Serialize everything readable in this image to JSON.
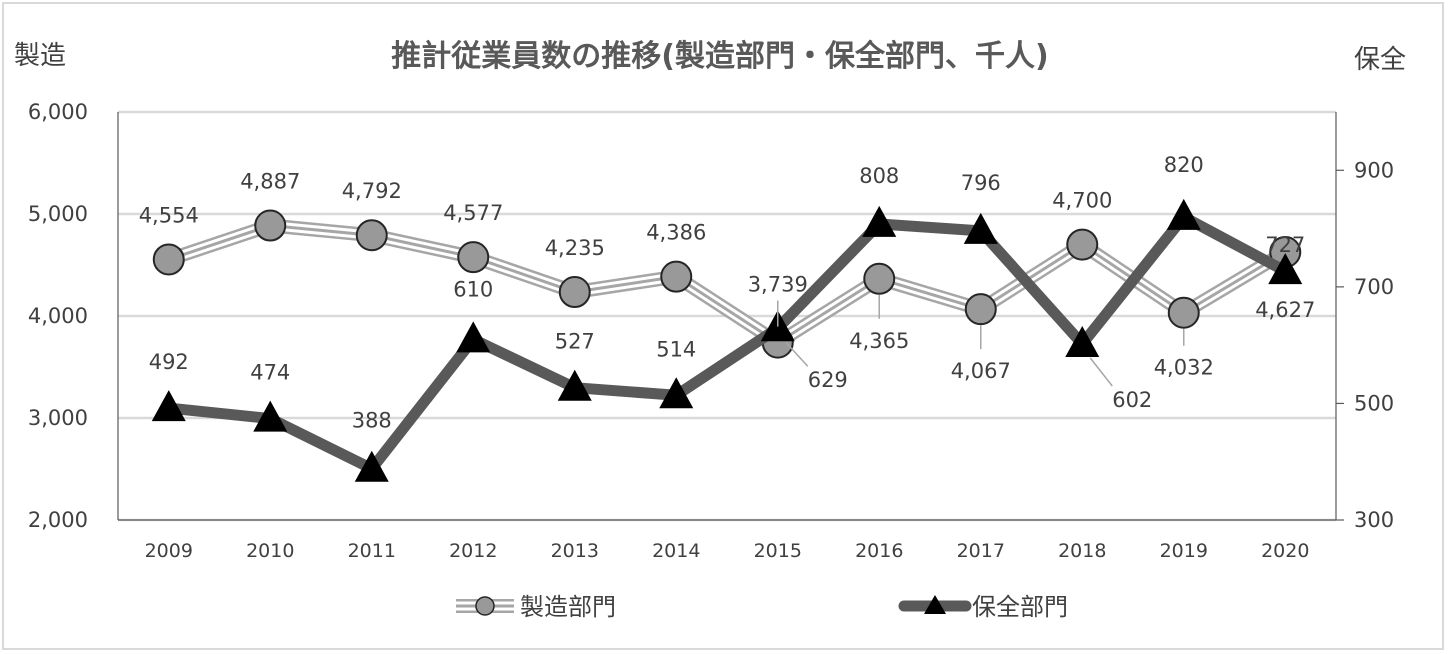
{
  "chart_data": {
    "type": "line",
    "title": "推計従業員数の推移(製造部門・保全部門、千人)",
    "y_left_label": "製造",
    "y_right_label": "保全",
    "categories": [
      "2009",
      "2010",
      "2011",
      "2012",
      "2013",
      "2014",
      "2015",
      "2016",
      "2017",
      "2018",
      "2019",
      "2020"
    ],
    "y_left": {
      "range": [
        2000,
        6000
      ],
      "ticks": [
        "2,000",
        "3,000",
        "4,000",
        "5,000",
        "6,000"
      ],
      "tick_values": [
        2000,
        3000,
        4000,
        5000,
        6000
      ]
    },
    "y_right": {
      "range": [
        300,
        1000
      ],
      "ticks": [
        "300",
        "500",
        "700",
        "900"
      ],
      "tick_values": [
        300,
        500,
        700,
        900
      ]
    },
    "grid": true,
    "legend_position": "bottom",
    "series": [
      {
        "name": "製造部門",
        "axis": "left",
        "marker": "circle",
        "values": [
          4554,
          4887,
          4792,
          4577,
          4235,
          4386,
          3739,
          4365,
          4067,
          4700,
          4032,
          4627
        ],
        "labels": [
          "4,554",
          "4,887",
          "4,792",
          "4,577",
          "4,235",
          "4,386",
          "3,739",
          "4,365",
          "4,067",
          "4,700",
          "4,032",
          "4,627"
        ],
        "line_color": "#a6a6a6",
        "marker_color": "#999999"
      },
      {
        "name": "保全部門",
        "axis": "right",
        "marker": "triangle",
        "values": [
          492,
          474,
          388,
          610,
          527,
          514,
          629,
          808,
          796,
          602,
          820,
          727
        ],
        "labels": [
          "492",
          "474",
          "388",
          "610",
          "527",
          "514",
          "629",
          "808",
          "796",
          "602",
          "820",
          "727"
        ],
        "line_color": "#595959",
        "marker_color": "#000000"
      }
    ]
  }
}
